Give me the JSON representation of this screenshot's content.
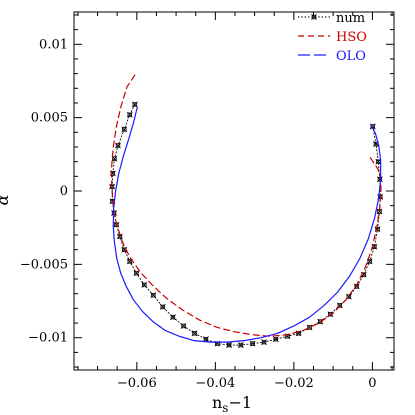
{
  "chart_data": {
    "type": "line",
    "title": "",
    "xlabel": "n",
    "xlabel_sub": "s",
    "xlabel_suffix": "−1",
    "ylabel": "α",
    "xlim": [
      -0.076,
      0.0055
    ],
    "ylim": [
      -0.0122,
      0.0122
    ],
    "xticks": [
      -0.06,
      -0.04,
      -0.02,
      0
    ],
    "xtick_labels": [
      "−0.06",
      "−0.04",
      "−0.02",
      "0"
    ],
    "yticks": [
      -0.01,
      -0.005,
      0,
      0.005,
      0.01
    ],
    "ytick_labels": [
      "−0.01",
      "−0.005",
      "0",
      "0.005",
      "0.01"
    ],
    "grid": false,
    "legend_position": "top-right",
    "series": [
      {
        "name": "num",
        "color": "#000000",
        "style": "dotted-markers",
        "x": [
          -0.0605,
          -0.0618,
          -0.0632,
          -0.0648,
          -0.0657,
          -0.0661,
          -0.0663,
          -0.0662,
          -0.0658,
          -0.0652,
          -0.0643,
          -0.0632,
          -0.0618,
          -0.0601,
          -0.0581,
          -0.0558,
          -0.0534,
          -0.0508,
          -0.0481,
          -0.0453,
          -0.0424,
          -0.0395,
          -0.0365,
          -0.0335,
          -0.0305,
          -0.0276,
          -0.0246,
          -0.0216,
          -0.0188,
          -0.016,
          -0.0133,
          -0.0107,
          -0.0083,
          -0.006,
          -0.004,
          -0.0022,
          -0.0007,
          0.0005,
          0.0013,
          0.0018,
          0.002,
          0.0019,
          0.0015,
          0.0009,
          0.0001
        ],
        "y": [
          0.0059,
          0.0052,
          0.0042,
          0.0031,
          0.0022,
          0.0012,
          0.0003,
          -0.0007,
          -0.0015,
          -0.0023,
          -0.0031,
          -0.004,
          -0.0048,
          -0.0056,
          -0.0064,
          -0.0071,
          -0.0079,
          -0.0086,
          -0.0092,
          -0.0097,
          -0.0101,
          -0.0104,
          -0.0105,
          -0.0105,
          -0.0104,
          -0.0103,
          -0.0101,
          -0.0099,
          -0.0097,
          -0.0093,
          -0.0089,
          -0.0084,
          -0.0078,
          -0.0072,
          -0.0065,
          -0.0057,
          -0.0048,
          -0.0038,
          -0.0026,
          -0.0014,
          -0.0004,
          0.0008,
          0.002,
          0.0032,
          0.0044
        ]
      },
      {
        "name": "HSO",
        "color": "#cc0000",
        "style": "dashed",
        "x": [
          -0.0605,
          -0.0625,
          -0.064,
          -0.0652,
          -0.066,
          -0.0664,
          -0.0664,
          -0.066,
          -0.0652,
          -0.0638,
          -0.0618,
          -0.0592,
          -0.0561,
          -0.0525,
          -0.0484,
          -0.044,
          -0.0395,
          -0.035,
          -0.0305,
          -0.0262,
          -0.0218,
          -0.0176,
          -0.0136,
          -0.0099,
          -0.0067,
          -0.004,
          -0.0018,
          -0.0001,
          0.0011,
          0.0019,
          0.0022,
          0.002,
          0.0014,
          0.0004,
          -0.0006
        ],
        "y": [
          0.0079,
          0.0071,
          0.0058,
          0.0044,
          0.003,
          0.0017,
          0.0004,
          -0.001,
          -0.0022,
          -0.0034,
          -0.0045,
          -0.0055,
          -0.0064,
          -0.0073,
          -0.0081,
          -0.0088,
          -0.0093,
          -0.0096,
          -0.0098,
          -0.0099,
          -0.0098,
          -0.0095,
          -0.009,
          -0.0083,
          -0.0074,
          -0.0064,
          -0.0052,
          -0.0039,
          -0.0025,
          -0.0011,
          0.0001,
          0.0009,
          0.0015,
          0.0019,
          0.0023
        ]
      },
      {
        "name": "OLO",
        "color": "#1a1aff",
        "style": "solid",
        "x": [
          -0.0599,
          -0.0608,
          -0.062,
          -0.0634,
          -0.0646,
          -0.0654,
          -0.0659,
          -0.066,
          -0.0657,
          -0.0651,
          -0.0641,
          -0.0627,
          -0.0609,
          -0.0586,
          -0.0559,
          -0.0528,
          -0.0492,
          -0.0454,
          -0.0413,
          -0.037,
          -0.0327,
          -0.0284,
          -0.0241,
          -0.02,
          -0.016,
          -0.0123,
          -0.0089,
          -0.0058,
          -0.0032,
          -0.0011,
          0.0005,
          0.0016,
          0.0021,
          0.0021,
          0.0016,
          0.0008,
          -0.0003
        ],
        "y": [
          0.0057,
          0.0047,
          0.0036,
          0.0024,
          0.0012,
          0.0,
          -0.0012,
          -0.0024,
          -0.0035,
          -0.0046,
          -0.0056,
          -0.0065,
          -0.0074,
          -0.0082,
          -0.0089,
          -0.0095,
          -0.0099,
          -0.0102,
          -0.0103,
          -0.0103,
          -0.0102,
          -0.01,
          -0.0097,
          -0.0092,
          -0.0086,
          -0.0078,
          -0.0069,
          -0.0058,
          -0.0046,
          -0.0033,
          -0.0019,
          -0.0005,
          0.0008,
          0.0021,
          0.0031,
          0.0039,
          0.0045
        ]
      }
    ]
  }
}
